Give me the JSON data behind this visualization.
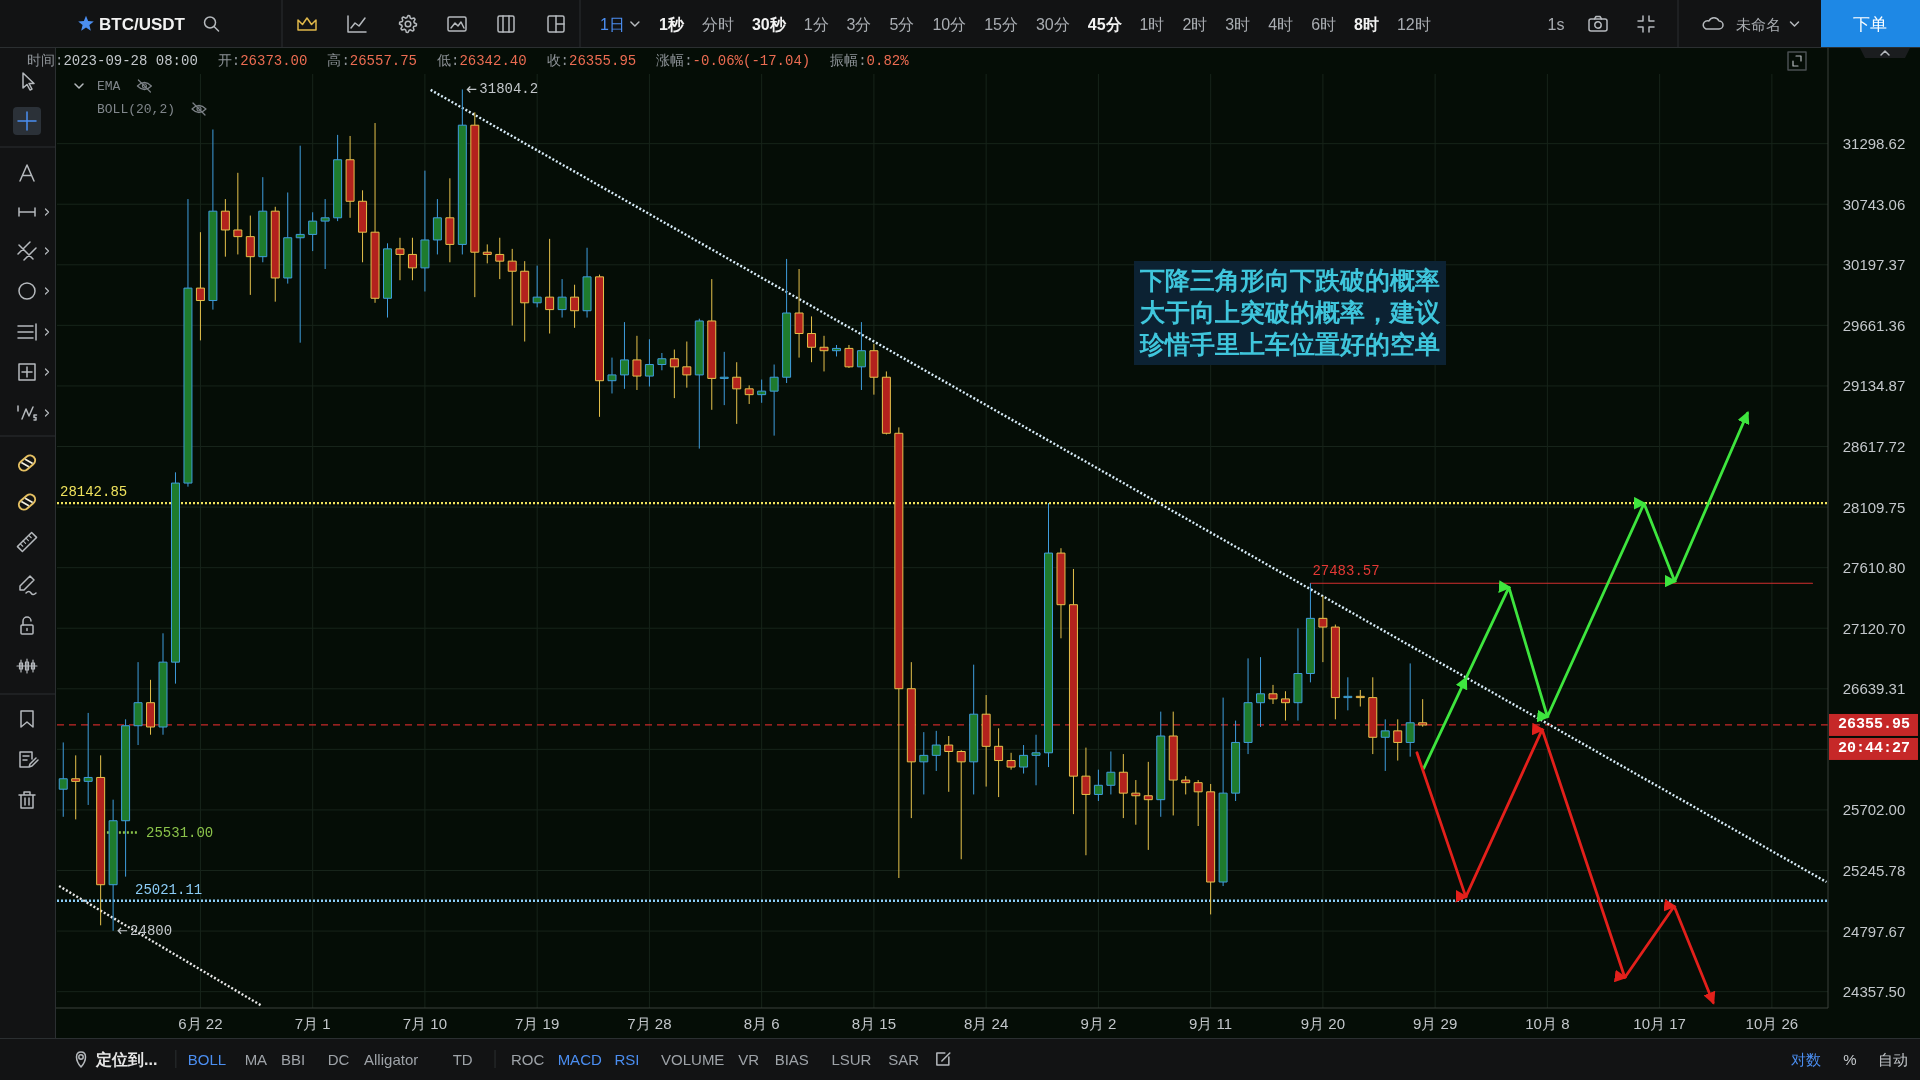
{
  "chart_data": {
    "type": "candlestick",
    "title": "BTC/USDT",
    "x": [
      "2023-06-11",
      "2023-06-12",
      "2023-06-13",
      "2023-06-14",
      "2023-06-15",
      "2023-06-16",
      "2023-06-17",
      "2023-06-18",
      "2023-06-19",
      "2023-06-20",
      "2023-06-21",
      "2023-06-22",
      "2023-06-23",
      "2023-06-24",
      "2023-06-25",
      "2023-06-26",
      "2023-06-27",
      "2023-06-28",
      "2023-06-29",
      "2023-06-30",
      "2023-07-01",
      "2023-07-02",
      "2023-07-03",
      "2023-07-04",
      "2023-07-05",
      "2023-07-06",
      "2023-07-07",
      "2023-07-08",
      "2023-07-09",
      "2023-07-10",
      "2023-07-11",
      "2023-07-12",
      "2023-07-13",
      "2023-07-14",
      "2023-07-15",
      "2023-07-16",
      "2023-07-17",
      "2023-07-18",
      "2023-07-19",
      "2023-07-20",
      "2023-07-21",
      "2023-07-22",
      "2023-07-23",
      "2023-07-24",
      "2023-07-25",
      "2023-07-26",
      "2023-07-27",
      "2023-07-28",
      "2023-07-29",
      "2023-07-30",
      "2023-07-31",
      "2023-08-01",
      "2023-08-02",
      "2023-08-03",
      "2023-08-04",
      "2023-08-05",
      "2023-08-06",
      "2023-08-07",
      "2023-08-08",
      "2023-08-09",
      "2023-08-10",
      "2023-08-11",
      "2023-08-12",
      "2023-08-13",
      "2023-08-14",
      "2023-08-15",
      "2023-08-16",
      "2023-08-17",
      "2023-08-18",
      "2023-08-19",
      "2023-08-20",
      "2023-08-21",
      "2023-08-22",
      "2023-08-23",
      "2023-08-24",
      "2023-08-25",
      "2023-08-26",
      "2023-08-27",
      "2023-08-28",
      "2023-08-29",
      "2023-08-30",
      "2023-08-31",
      "2023-09-01",
      "2023-09-02",
      "2023-09-03",
      "2023-09-04",
      "2023-09-05",
      "2023-09-06",
      "2023-09-07",
      "2023-09-08",
      "2023-09-09",
      "2023-09-10",
      "2023-09-11",
      "2023-09-12",
      "2023-09-13",
      "2023-09-14",
      "2023-09-15",
      "2023-09-16",
      "2023-09-17",
      "2023-09-18",
      "2023-09-19",
      "2023-09-20",
      "2023-09-21",
      "2023-09-22",
      "2023-09-23",
      "2023-09-24",
      "2023-09-25",
      "2023-09-26",
      "2023-09-27",
      "2023-09-28"
    ],
    "ohlc": [
      [
        25860,
        26220,
        25650,
        25940
      ],
      [
        25940,
        26120,
        25630,
        25920
      ],
      [
        25920,
        26450,
        25740,
        25950
      ],
      [
        25950,
        26120,
        24840,
        25140
      ],
      [
        25140,
        25780,
        24800,
        25620
      ],
      [
        25620,
        26400,
        25200,
        26350
      ],
      [
        26350,
        26850,
        26200,
        26530
      ],
      [
        26530,
        26710,
        26280,
        26340
      ],
      [
        26340,
        27080,
        26280,
        26850
      ],
      [
        26850,
        28400,
        26680,
        28310
      ],
      [
        28310,
        30790,
        28280,
        29990
      ],
      [
        29990,
        30490,
        29530,
        29880
      ],
      [
        29880,
        31430,
        29800,
        30680
      ],
      [
        30680,
        30790,
        30270,
        30510
      ],
      [
        30510,
        31030,
        30290,
        30450
      ],
      [
        30450,
        30640,
        29930,
        30270
      ],
      [
        30270,
        30990,
        30220,
        30680
      ],
      [
        30680,
        30720,
        29870,
        30080
      ],
      [
        30080,
        30850,
        30030,
        30440
      ],
      [
        30440,
        31280,
        29510,
        30470
      ],
      [
        30470,
        30670,
        30320,
        30590
      ],
      [
        30590,
        30790,
        30160,
        30620
      ],
      [
        30620,
        31380,
        30590,
        31150
      ],
      [
        31150,
        31370,
        30620,
        30770
      ],
      [
        30770,
        30870,
        30220,
        30490
      ],
      [
        30490,
        31490,
        29860,
        29900
      ],
      [
        29900,
        30390,
        29730,
        30340
      ],
      [
        30340,
        30440,
        30060,
        30290
      ],
      [
        30290,
        30440,
        30060,
        30170
      ],
      [
        30170,
        31050,
        29960,
        30420
      ],
      [
        30420,
        30790,
        30290,
        30620
      ],
      [
        30620,
        30980,
        30220,
        30380
      ],
      [
        30380,
        31804.2,
        30290,
        31470
      ],
      [
        31470,
        31590,
        29910,
        30310
      ],
      [
        30310,
        30380,
        30210,
        30290
      ],
      [
        30290,
        30440,
        30070,
        30230
      ],
      [
        30230,
        30340,
        29660,
        30140
      ],
      [
        30140,
        30230,
        29520,
        29860
      ],
      [
        29860,
        30190,
        29820,
        29910
      ],
      [
        29910,
        30430,
        29590,
        29800
      ],
      [
        29800,
        30070,
        29730,
        29910
      ],
      [
        29910,
        30020,
        29640,
        29790
      ],
      [
        29790,
        30350,
        29730,
        30090
      ],
      [
        30090,
        30110,
        28870,
        29180
      ],
      [
        29180,
        29380,
        29070,
        29230
      ],
      [
        29230,
        29690,
        29110,
        29360
      ],
      [
        29360,
        29570,
        29100,
        29220
      ],
      [
        29220,
        29540,
        29130,
        29320
      ],
      [
        29320,
        29420,
        29270,
        29370
      ],
      [
        29370,
        29450,
        29030,
        29300
      ],
      [
        29300,
        29520,
        29120,
        29230
      ],
      [
        29230,
        29720,
        28600,
        29700
      ],
      [
        29700,
        30070,
        28930,
        29200
      ],
      [
        29200,
        29430,
        28970,
        29210
      ],
      [
        29210,
        29340,
        28810,
        29110
      ],
      [
        29110,
        29140,
        28980,
        29060
      ],
      [
        29060,
        29190,
        28990,
        29090
      ],
      [
        29090,
        29320,
        28710,
        29210
      ],
      [
        29210,
        30250,
        29160,
        29770
      ],
      [
        29770,
        30160,
        29380,
        29590
      ],
      [
        29590,
        29740,
        29340,
        29470
      ],
      [
        29470,
        29570,
        29260,
        29440
      ],
      [
        29440,
        29490,
        29390,
        29460
      ],
      [
        29460,
        29490,
        29290,
        29300
      ],
      [
        29300,
        29690,
        29100,
        29440
      ],
      [
        29440,
        29500,
        29060,
        29210
      ],
      [
        29210,
        29260,
        28720,
        28730
      ],
      [
        28730,
        28780,
        25190,
        26640
      ],
      [
        26640,
        26850,
        25640,
        26070
      ],
      [
        26070,
        26300,
        25820,
        26120
      ],
      [
        26120,
        26310,
        26000,
        26200
      ],
      [
        26200,
        26270,
        25840,
        26150
      ],
      [
        26150,
        26160,
        25330,
        26070
      ],
      [
        26070,
        26830,
        25820,
        26440
      ],
      [
        26440,
        26590,
        25880,
        26190
      ],
      [
        26190,
        26330,
        25800,
        26080
      ],
      [
        26080,
        26140,
        26010,
        26030
      ],
      [
        26030,
        26200,
        25980,
        26120
      ],
      [
        26120,
        26280,
        25890,
        26140
      ],
      [
        26140,
        28142.85,
        26030,
        27730
      ],
      [
        27730,
        27770,
        27040,
        27310
      ],
      [
        27310,
        27600,
        25670,
        25960
      ],
      [
        25960,
        26180,
        25360,
        25820
      ],
      [
        25820,
        26010,
        25770,
        25890
      ],
      [
        25890,
        26150,
        25820,
        25990
      ],
      [
        25990,
        26130,
        25640,
        25830
      ],
      [
        25830,
        25930,
        25590,
        25810
      ],
      [
        25810,
        26070,
        25400,
        25780
      ],
      [
        25780,
        26460,
        25650,
        26270
      ],
      [
        26270,
        26460,
        25660,
        25930
      ],
      [
        25930,
        25960,
        25820,
        25910
      ],
      [
        25910,
        25930,
        25580,
        25840
      ],
      [
        25840,
        25900,
        24920,
        25160
      ],
      [
        25160,
        26570,
        25130,
        25830
      ],
      [
        25830,
        26390,
        25770,
        26220
      ],
      [
        26220,
        26880,
        26130,
        26530
      ],
      [
        26530,
        26890,
        26340,
        26600
      ],
      [
        26600,
        26670,
        26520,
        26560
      ],
      [
        26560,
        26620,
        26390,
        26530
      ],
      [
        26530,
        27120,
        26390,
        26760
      ],
      [
        26760,
        27483.57,
        26690,
        27200
      ],
      [
        27200,
        27380,
        26850,
        27130
      ],
      [
        27130,
        27150,
        26400,
        26570
      ],
      [
        26570,
        26730,
        26470,
        26580
      ],
      [
        26580,
        26630,
        26500,
        26570
      ],
      [
        26570,
        26730,
        26130,
        26260
      ],
      [
        26260,
        26400,
        26000,
        26310
      ],
      [
        26310,
        26400,
        26080,
        26220
      ],
      [
        26220,
        26840,
        26110,
        26373
      ],
      [
        26373.0,
        26557.75,
        26342.4,
        26355.95
      ]
    ],
    "xlim": [
      "2023-06-10T12:00",
      "2023-10-30T12:00"
    ],
    "xticks": [
      {
        "value": "2023-06-22",
        "label": "6月 22"
      },
      {
        "value": "2023-07-01",
        "label": "7月 1"
      },
      {
        "value": "2023-07-10",
        "label": "7月 10"
      },
      {
        "value": "2023-07-19",
        "label": "7月 19"
      },
      {
        "value": "2023-07-28",
        "label": "7月 28"
      },
      {
        "value": "2023-08-06",
        "label": "8月 6"
      },
      {
        "value": "2023-08-15",
        "label": "8月 15"
      },
      {
        "value": "2023-08-24",
        "label": "8月 24"
      },
      {
        "value": "2023-09-02",
        "label": "9月 2"
      },
      {
        "value": "2023-09-11",
        "label": "9月 11"
      },
      {
        "value": "2023-09-20",
        "label": "9月 20"
      },
      {
        "value": "2023-09-29",
        "label": "9月 29"
      },
      {
        "value": "2023-10-08",
        "label": "10月 8"
      },
      {
        "value": "2023-10-17",
        "label": "10月 17"
      },
      {
        "value": "2023-10-26",
        "label": "10月 26"
      }
    ],
    "ylim": [
      24240,
      31950
    ],
    "yticks": [
      31298.62,
      30743.06,
      30197.37,
      29661.36,
      29134.87,
      28617.72,
      28109.75,
      {
        "value": 27610.8,
        "label": "27610.80"
      },
      {
        "value": 27120.7,
        "label": "27120.70"
      },
      26639.31,
      {
        "value": 26166.45,
        "label": null
      },
      {
        "value": 25702,
        "label": "25702.00"
      },
      25245.78,
      24797.67,
      {
        "value": 24357.5,
        "label": "24357.50"
      }
    ],
    "log": true,
    "grid": true,
    "series": [
      {
        "type": "line",
        "x": [
          "2023-07-10T11:00",
          "2023-10-30T09:00"
        ],
        "values": [
          31800,
          25160
        ],
        "color": "#d8ecf8",
        "line_style": "dotted"
      },
      {
        "type": "line",
        "x": [
          "2023-06-10T16:00",
          "2023-06-26T20:00"
        ],
        "values": [
          25130,
          24260
        ],
        "color": "#e8e8e8",
        "line_style": "dotted"
      },
      {
        "type": "line",
        "x": [
          "2023-09-19",
          "2023-10-29T06:00"
        ],
        "values": [
          27483.57,
          27483.57
        ],
        "color": "#d32f2f",
        "line_style": "solid"
      },
      {
        "type": "line",
        "x": [
          "2023-06-14T12:00",
          "2023-06-17"
        ],
        "values": [
          25531,
          25531
        ],
        "color": "#8bc34a",
        "line_style": "dotted"
      },
      {
        "type": "line",
        "x": [
          "2023-09-28T02:00",
          "2023-10-01T11:00",
          "2023-10-04T22:00",
          "2023-10-08",
          "2023-10-15T18:00",
          "2023-10-18T05:00",
          "2023-10-24T01:00"
        ],
        "values": [
          26020,
          26720,
          27450,
          26420,
          28140,
          27500,
          28900
        ],
        "color": "#3ee53e",
        "line_style": "solid"
      },
      {
        "type": "line",
        "x": [
          "2023-09-27T13:00",
          "2023-10-01T11:00",
          "2023-10-07T14:00",
          "2023-10-14T05:00",
          "2023-10-18T04:00",
          "2023-10-21T07:00"
        ],
        "values": [
          26140,
          25050,
          26320,
          24460,
          24980,
          24280
        ],
        "color": "#e3201b",
        "line_style": "solid"
      }
    ],
    "ref_lines": [
      {
        "axis": "y",
        "value": 26355.95,
        "label": "26355.95",
        "color": "#c62828",
        "line_style": "dashed"
      },
      {
        "axis": "y",
        "value": 28142.85,
        "label": "28142.85",
        "color": "#efe25c",
        "line_style": "dotted"
      },
      {
        "axis": "y",
        "value": 25021.11,
        "label": "25021.11",
        "color": "#8ccdf7",
        "line_style": "dotted"
      }
    ],
    "annotations": [
      "下降三角形向下跌破的概率大于向上突破的概率，建议珍惜手里上车位置好的空单",
      {
        "text": "31804.2",
        "x": "2023-07-13",
        "y": 31804.2
      },
      {
        "text": "24800",
        "x": "2023-06-15",
        "y": 24800
      },
      {
        "text": "25531.00",
        "x": "2023-06-17",
        "y": 25531
      },
      {
        "text": "27483.57",
        "x": "2023-09-19",
        "y": 27483.57
      },
      "20:44:27",
      "时间:2023-09-28 08:00",
      "开:26373.00",
      "高:26557.75",
      "低:26342.40",
      "收:26355.95",
      "涨幅:-0.06%(-17.04)",
      "振幅:0.82%",
      "EMA",
      "BOLL(20,2)",
      "1日",
      "1秒",
      "分时",
      "30秒",
      "1分",
      "3分",
      "5分",
      "10分",
      "15分",
      "30分",
      "45分",
      "1时",
      "2时",
      "3时",
      "4时",
      "6时",
      "8时",
      "12时",
      "1s",
      "未命名",
      "下单",
      "定位到...",
      "BOLL",
      "MA",
      "BBI",
      "DC",
      "Alligator",
      "TD",
      "ROC",
      "MACD",
      "RSI",
      "VOLUME",
      "VR",
      "BIAS",
      "LSUR",
      "SAR",
      "对数",
      "%",
      "自动"
    ]
  }
}
